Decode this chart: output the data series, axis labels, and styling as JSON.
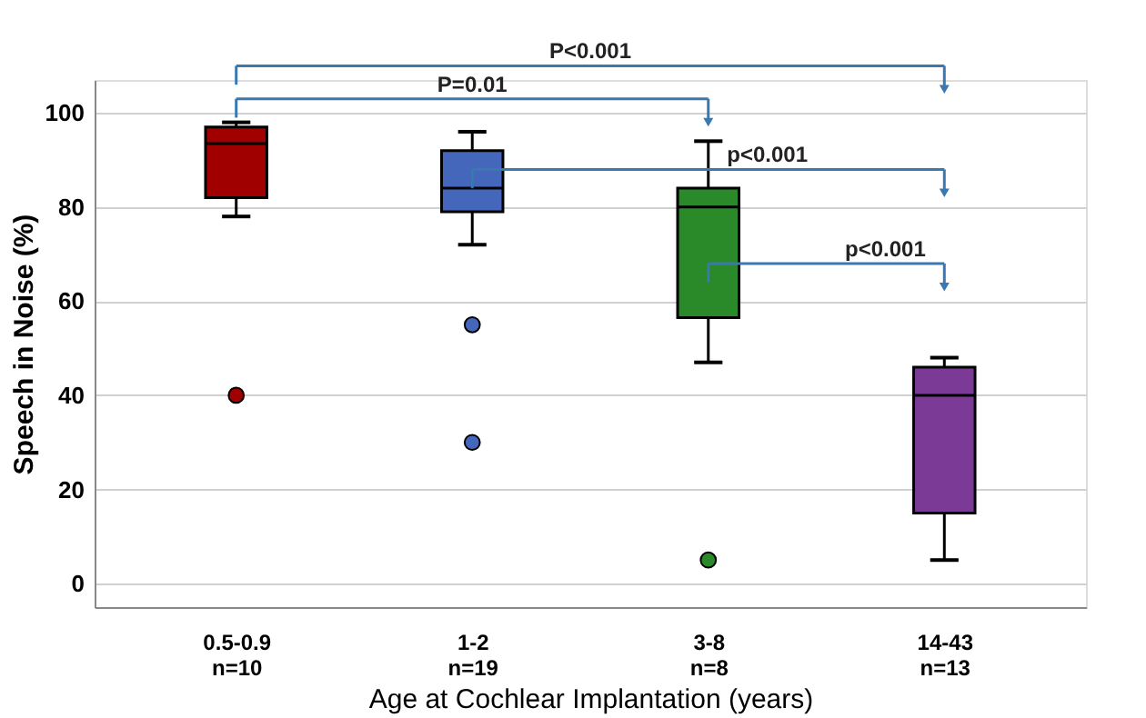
{
  "chart_data": {
    "type": "box",
    "categories": [
      "0.5-0.9\nn=10",
      "1-2\nn=19",
      "3-8\nn=8",
      "14-43\nn=13"
    ],
    "boxes": [
      {
        "low": 78,
        "q1": 82,
        "median": 93.5,
        "q3": 97,
        "high": 98,
        "outliers": [
          40
        ]
      },
      {
        "low": 72,
        "q1": 79,
        "median": 84,
        "q3": 92,
        "high": 96,
        "outliers": [
          55,
          30
        ]
      },
      {
        "low": 47,
        "q1": 56.5,
        "median": 80,
        "q3": 84,
        "high": 94,
        "outliers": [
          5
        ]
      },
      {
        "low": 5,
        "q1": 15,
        "median": 40,
        "q3": 46,
        "high": 48
      }
    ],
    "colors": [
      "#a00000",
      "#4466bb",
      "#2a8a2a",
      "#7b3a96"
    ],
    "xlabel": "Age at Cochlear Implantation (years)",
    "ylabel": "Speech in Noise (%)",
    "ylim": [
      -5,
      107
    ],
    "yticks": [
      0,
      20,
      40,
      60,
      80,
      100
    ],
    "grid": "y",
    "annotations": [
      "P<0.001",
      "P=0.01",
      "p<0.001",
      "p<0.001"
    ]
  }
}
